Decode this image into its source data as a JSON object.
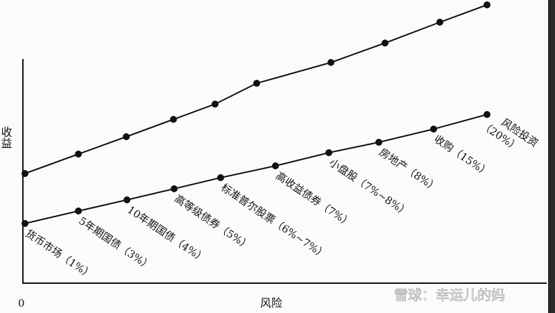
{
  "y_label": "收益",
  "x_label": "风险",
  "origin": "0",
  "labels": [
    [
      "货币市场（1%）"
    ],
    [
      "5年期国债（3%）"
    ],
    [
      "10年期国债（4%）"
    ],
    [
      "高等级债券（5%）"
    ],
    [
      "标准普尔股票（6%~7%）"
    ],
    [
      "高收益债券（7%）"
    ],
    [
      "小盘股（7%~8%）"
    ],
    [
      "房地产（8%）"
    ],
    [
      "收购（15%）"
    ],
    [
      "风险投资",
      "（20%）"
    ]
  ],
  "watermark": "雪球：幸运儿的妈"
}
